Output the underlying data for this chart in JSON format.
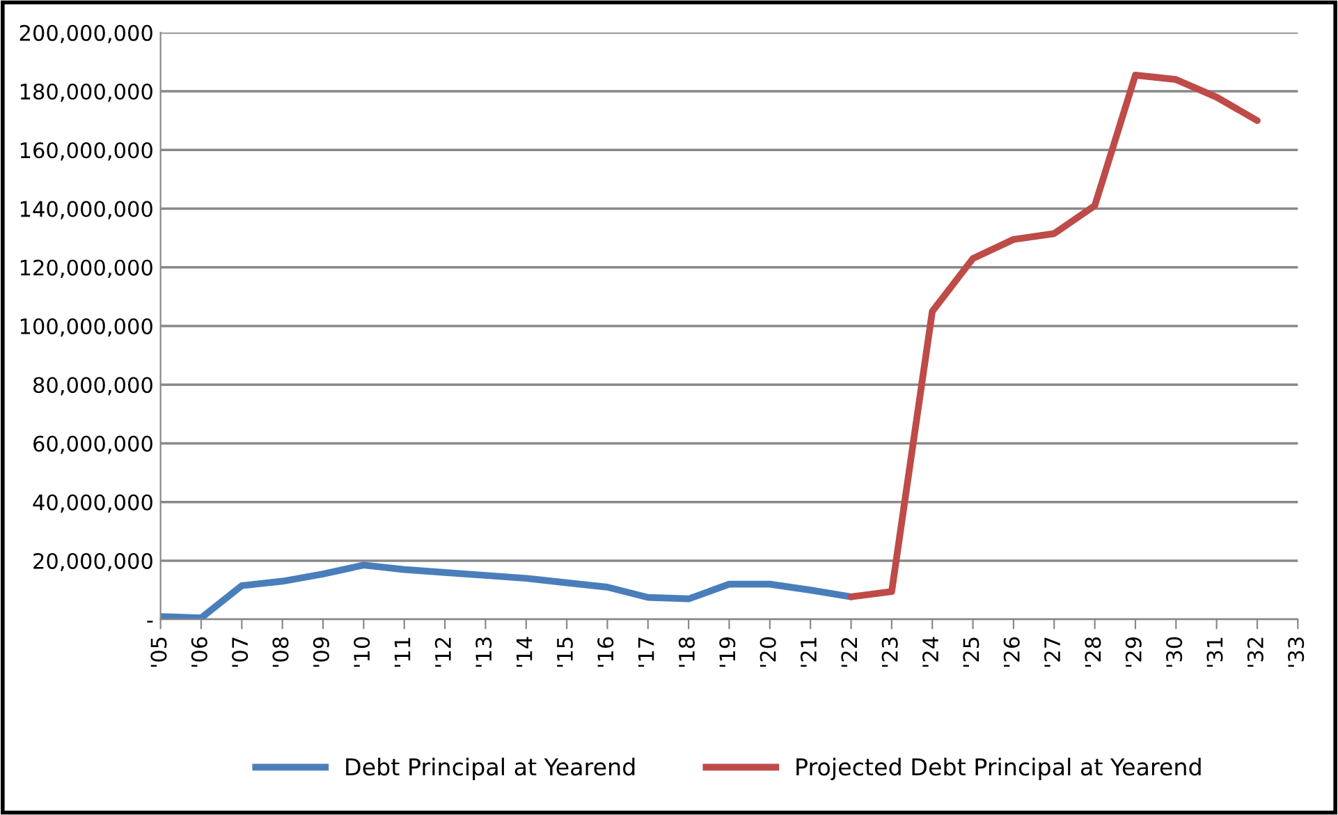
{
  "chart_data": {
    "type": "line",
    "categories": [
      "'05",
      "'06",
      "'07",
      "'08",
      "'09",
      "'10",
      "'11",
      "'12",
      "'13",
      "'14",
      "'15",
      "'16",
      "'17",
      "'18",
      "'19",
      "'20",
      "'21",
      "'22",
      "'23",
      "'24",
      "'25",
      "'26",
      "'27",
      "'28",
      "'29",
      "'30",
      "'31",
      "'32",
      "'33"
    ],
    "series": [
      {
        "name": "Debt Principal at Yearend",
        "color": "#4a7ebb",
        "values": [
          1000000,
          500000,
          11500000,
          13000000,
          15500000,
          18500000,
          17000000,
          16000000,
          15000000,
          14000000,
          12500000,
          11000000,
          7500000,
          7000000,
          12000000,
          12000000,
          10000000,
          7700000,
          null,
          null,
          null,
          null,
          null,
          null,
          null,
          null,
          null,
          null,
          null
        ]
      },
      {
        "name": "Projected Debt Principal at Yearend",
        "color": "#be4b48",
        "values": [
          null,
          null,
          null,
          null,
          null,
          null,
          null,
          null,
          null,
          null,
          null,
          null,
          null,
          null,
          null,
          null,
          null,
          7700000,
          9500000,
          105000000,
          123000000,
          129500000,
          131500000,
          141000000,
          185500000,
          184000000,
          178000000,
          170000000,
          null
        ]
      }
    ],
    "ylim": [
      0,
      200000000
    ],
    "yticks": [
      {
        "value": 0,
        "label": "-"
      },
      {
        "value": 20000000,
        "label": "20,000,000"
      },
      {
        "value": 40000000,
        "label": "40,000,000"
      },
      {
        "value": 60000000,
        "label": "60,000,000"
      },
      {
        "value": 80000000,
        "label": "80,000,000"
      },
      {
        "value": 100000000,
        "label": "100,000,000"
      },
      {
        "value": 120000000,
        "label": "120,000,000"
      },
      {
        "value": 140000000,
        "label": "140,000,000"
      },
      {
        "value": 160000000,
        "label": "160,000,000"
      },
      {
        "value": 180000000,
        "label": "180,000,000"
      },
      {
        "value": 200000000,
        "label": "200,000,000"
      }
    ],
    "grid": "y",
    "legend": "bottom",
    "marker": "none",
    "line_style": "solid"
  }
}
